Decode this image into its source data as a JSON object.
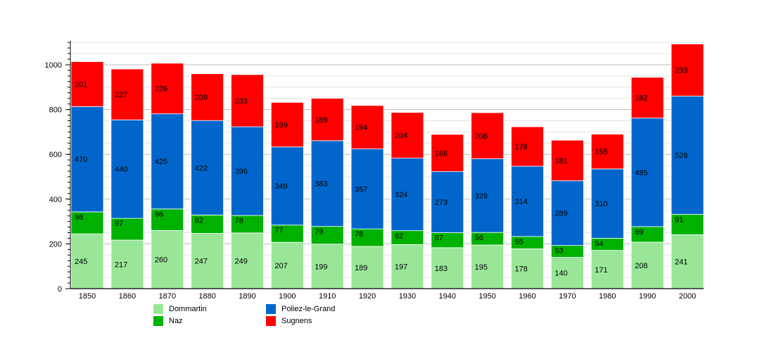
{
  "chart_data": {
    "type": "bar",
    "stacked": true,
    "categories": [
      "1850",
      "1860",
      "1870",
      "1880",
      "1890",
      "1900",
      "1910",
      "1920",
      "1930",
      "1940",
      "1950",
      "1960",
      "1970",
      "1980",
      "1990",
      "2000"
    ],
    "series": [
      {
        "name": "Dommartin",
        "color": "#99e699",
        "values": [
          245,
          217,
          260,
          247,
          249,
          207,
          199,
          189,
          197,
          183,
          195,
          178,
          140,
          171,
          208,
          241
        ]
      },
      {
        "name": "Naz",
        "color": "#00b200",
        "values": [
          98,
          97,
          96,
          82,
          78,
          77,
          79,
          78,
          62,
          67,
          56,
          55,
          53,
          54,
          69,
          91
        ]
      },
      {
        "name": "Poliez-le-Grand",
        "color": "#0066cc",
        "values": [
          470,
          440,
          425,
          422,
          396,
          349,
          383,
          357,
          324,
          273,
          329,
          314,
          289,
          310,
          485,
          528
        ]
      },
      {
        "name": "Sugnens",
        "color": "#ff0000",
        "values": [
          201,
          227,
          226,
          209,
          233,
          199,
          189,
          194,
          204,
          166,
          206,
          176,
          181,
          155,
          182,
          233
        ]
      }
    ],
    "yticks": [
      0,
      200,
      400,
      600,
      800,
      1000
    ],
    "ylim": [
      0,
      1100
    ],
    "grid": true,
    "data_labels": true,
    "legend_position": "bottom-left",
    "title": "",
    "xlabel": "",
    "ylabel": ""
  }
}
